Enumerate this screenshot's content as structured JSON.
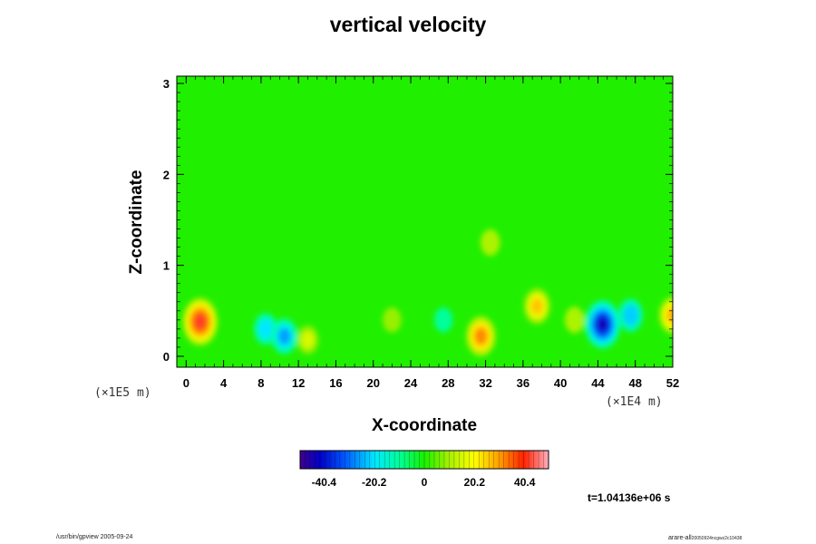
{
  "chart_data": {
    "type": "heatmap",
    "title": "vertical velocity",
    "xlabel": "X-coordinate",
    "ylabel": "Z-coordinate",
    "x_multiplier": "(×1E4 m)",
    "y_multiplier": "(×1E5 m)",
    "xlim": [
      -1,
      52
    ],
    "ylim": [
      -0.12,
      3.08
    ],
    "x_ticks": [
      "0",
      "4",
      "8",
      "12",
      "16",
      "20",
      "24",
      "28",
      "32",
      "36",
      "40",
      "44",
      "48",
      "52"
    ],
    "y_ticks": [
      "0",
      "1",
      "2",
      "3"
    ],
    "colorbar": {
      "range": [
        -50,
        50
      ],
      "tick_labels": [
        "-40.4",
        "-20.2",
        "0",
        "20.2",
        "40.4"
      ],
      "tick_values": [
        -40.4,
        -20.2,
        0,
        20.2,
        40.4
      ]
    },
    "background_value": 0,
    "features": [
      {
        "x": 1.5,
        "z": 0.38,
        "value": 42,
        "type": "updraft"
      },
      {
        "x": 8.5,
        "z": 0.3,
        "value": -18,
        "type": "downdraft"
      },
      {
        "x": 10.5,
        "z": 0.22,
        "value": -24,
        "type": "downdraft"
      },
      {
        "x": 13.0,
        "z": 0.18,
        "value": 14,
        "type": "updraft"
      },
      {
        "x": 22.0,
        "z": 0.4,
        "value": 8,
        "type": "updraft"
      },
      {
        "x": 27.5,
        "z": 0.4,
        "value": -8,
        "type": "downdraft"
      },
      {
        "x": 31.5,
        "z": 0.22,
        "value": 30,
        "type": "updraft"
      },
      {
        "x": 32.5,
        "z": 1.25,
        "value": 10,
        "type": "updraft"
      },
      {
        "x": 37.5,
        "z": 0.55,
        "value": 24,
        "type": "updraft"
      },
      {
        "x": 41.5,
        "z": 0.4,
        "value": 10,
        "type": "updraft"
      },
      {
        "x": 44.5,
        "z": 0.35,
        "value": -42,
        "type": "downdraft"
      },
      {
        "x": 47.5,
        "z": 0.45,
        "value": -20,
        "type": "downdraft"
      },
      {
        "x": 52.0,
        "z": 0.45,
        "value": 26,
        "type": "updraft"
      }
    ]
  },
  "time_label": "t=1.04136e+06 s",
  "footer_left": "/usr/bin/gpview 2005-09-24",
  "footer_right_main": "arare-all",
  "footer_right_sub": "20050924ncgwz2c10438"
}
